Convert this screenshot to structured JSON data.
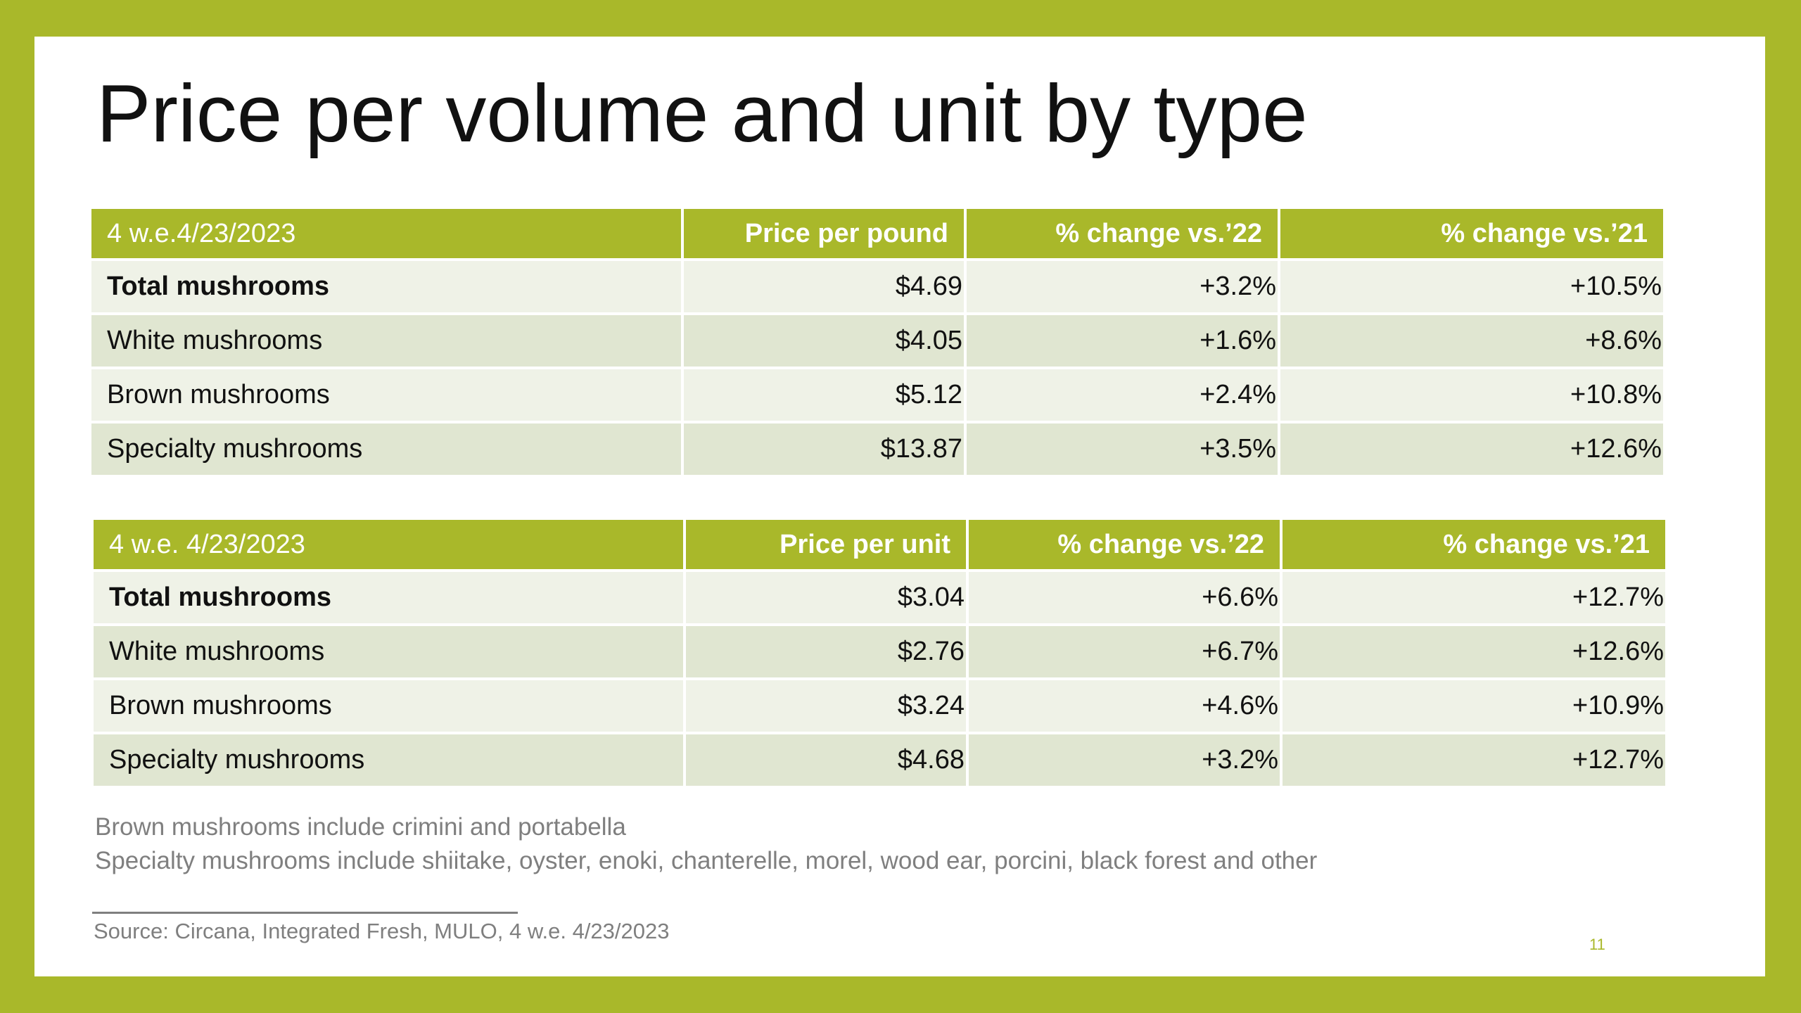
{
  "slide": {
    "title": "Price per volume and unit by type",
    "page_number": "11",
    "colors": {
      "frame": "#a9b82a",
      "header_bg": "#a9b82a",
      "header_text": "#ffffff",
      "row_light": "#eff2e7",
      "row_dark": "#e0e6d1",
      "note_text": "#7f7f7f"
    }
  },
  "table_pound": {
    "headers": [
      "4 w.e.4/23/2023",
      "Price per pound",
      "% change vs.’22",
      "% change vs.’21"
    ],
    "rows": [
      {
        "label": "Total mushrooms",
        "price": "$4.69",
        "vs22": "+3.2%",
        "vs21": "+10.5%"
      },
      {
        "label": "White mushrooms",
        "price": "$4.05",
        "vs22": "+1.6%",
        "vs21": "+8.6%"
      },
      {
        "label": "Brown mushrooms",
        "price": "$5.12",
        "vs22": "+2.4%",
        "vs21": "+10.8%"
      },
      {
        "label": "Specialty mushrooms",
        "price": "$13.87",
        "vs22": "+3.5%",
        "vs21": "+12.6%"
      }
    ]
  },
  "table_unit": {
    "headers": [
      "4 w.e. 4/23/2023",
      "Price per unit",
      "% change vs.’22",
      "% change vs.’21"
    ],
    "rows": [
      {
        "label": "Total mushrooms",
        "price": "$3.04",
        "vs22": "+6.6%",
        "vs21": "+12.7%"
      },
      {
        "label": "White mushrooms",
        "price": "$2.76",
        "vs22": "+6.7%",
        "vs21": "+12.6%"
      },
      {
        "label": "Brown mushrooms",
        "price": "$3.24",
        "vs22": "+4.6%",
        "vs21": "+10.9%"
      },
      {
        "label": "Specialty mushrooms",
        "price": "$4.68",
        "vs22": "+3.2%",
        "vs21": "+12.7%"
      }
    ]
  },
  "notes": [
    "Brown mushrooms include crimini and portabella",
    "Specialty mushrooms include shiitake, oyster, enoki, chanterelle, morel, wood ear, porcini, black forest and other"
  ],
  "source": "Source: Circana, Integrated Fresh, MULO, 4 w.e. 4/23/2023"
}
